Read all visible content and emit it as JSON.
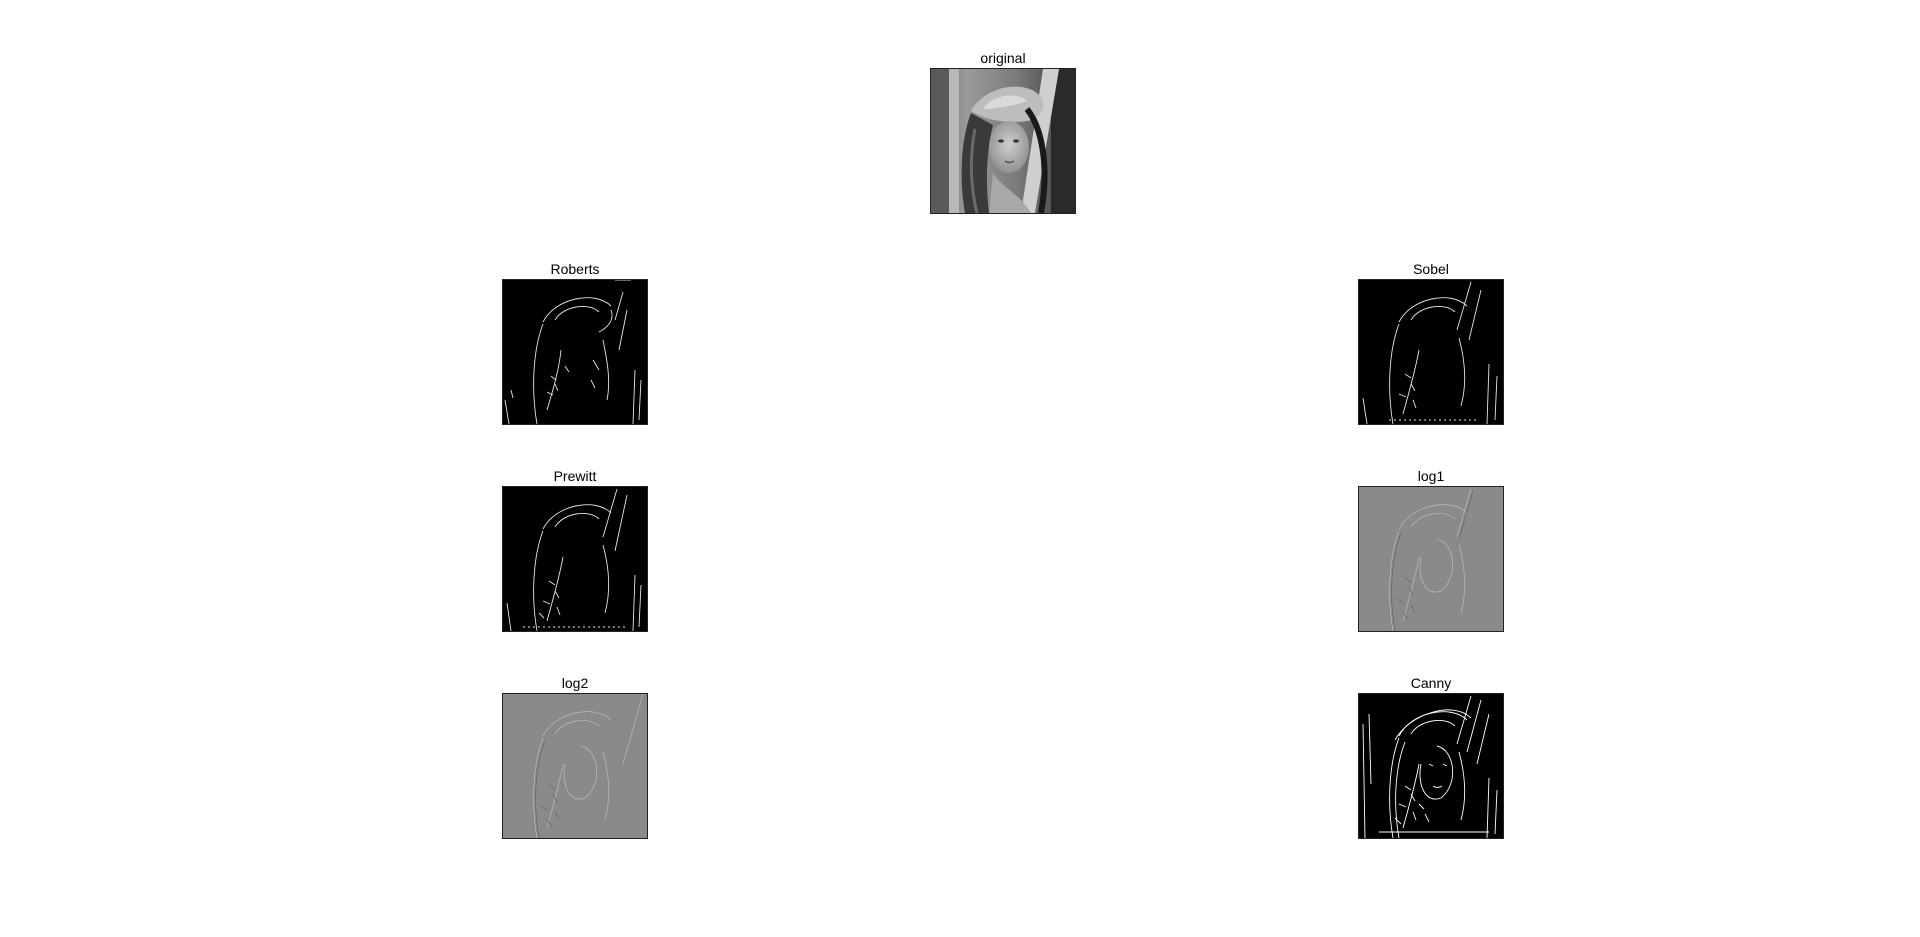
{
  "panels": [
    {
      "id": "original",
      "title": "original",
      "style": "photo"
    },
    {
      "id": "roberts",
      "title": "Roberts",
      "style": "edge-sparse"
    },
    {
      "id": "sobel",
      "title": "Sobel",
      "style": "edge-sparse"
    },
    {
      "id": "prewitt",
      "title": "Prewitt",
      "style": "edge-sparse"
    },
    {
      "id": "log1",
      "title": "log1",
      "style": "gray-texture"
    },
    {
      "id": "log2",
      "title": "log2",
      "style": "gray-texture"
    },
    {
      "id": "canny",
      "title": "Canny",
      "style": "edge-dense"
    }
  ],
  "colors": {
    "background": "#ffffff",
    "edge_background": "#000000",
    "edge_line": "#ffffff",
    "gray_background": "#8a8a8a"
  }
}
